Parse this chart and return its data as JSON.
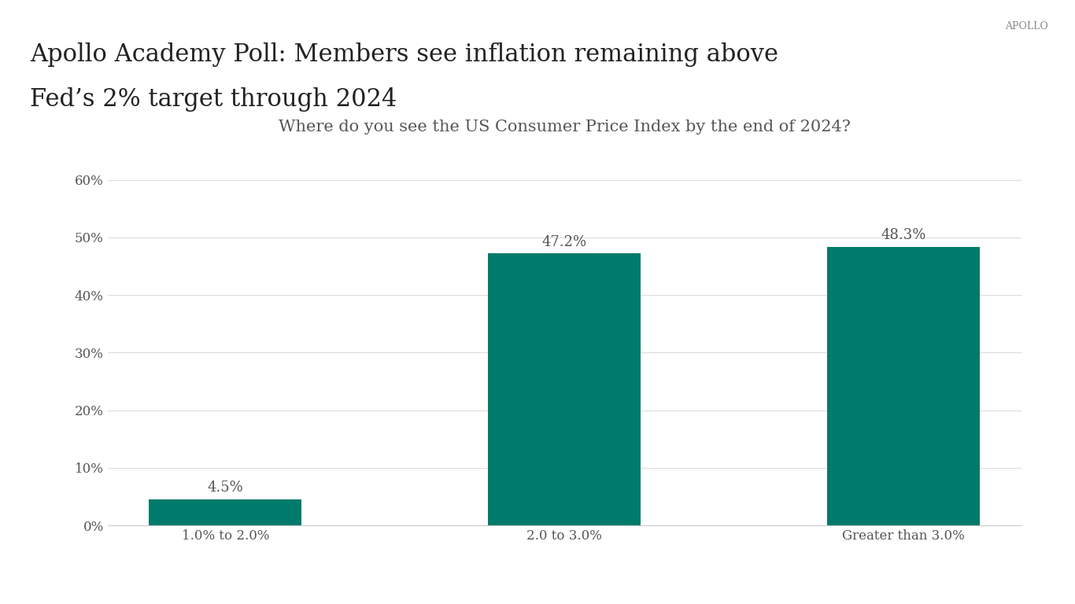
{
  "title_main_line1": "Apollo Academy Poll: Members see inflation remaining above",
  "title_main_line2": "Fed’s 2% target through 2024",
  "chart_title": "Where do you see the US Consumer Price Index by the end of 2024?",
  "apollo_label": "APOLLO",
  "categories": [
    "1.0% to 2.0%",
    "2.0 to 3.0%",
    "Greater than 3.0%"
  ],
  "values": [
    4.5,
    47.2,
    48.3
  ],
  "bar_color": "#007a6a",
  "background_color": "#ffffff",
  "text_color": "#555555",
  "title_color": "#222222",
  "apollo_color": "#888888",
  "ytick_labels": [
    "0%",
    "10%",
    "20%",
    "30%",
    "40%",
    "50%",
    "60%"
  ],
  "ytick_values": [
    0,
    10,
    20,
    30,
    40,
    50,
    60
  ],
  "ylim": [
    0,
    65
  ],
  "bar_label_fontsize": 13,
  "chart_title_fontsize": 15,
  "main_title_fontsize": 22,
  "xtick_fontsize": 12,
  "ytick_fontsize": 12,
  "apollo_fontsize": 9,
  "bar_width": 0.45
}
